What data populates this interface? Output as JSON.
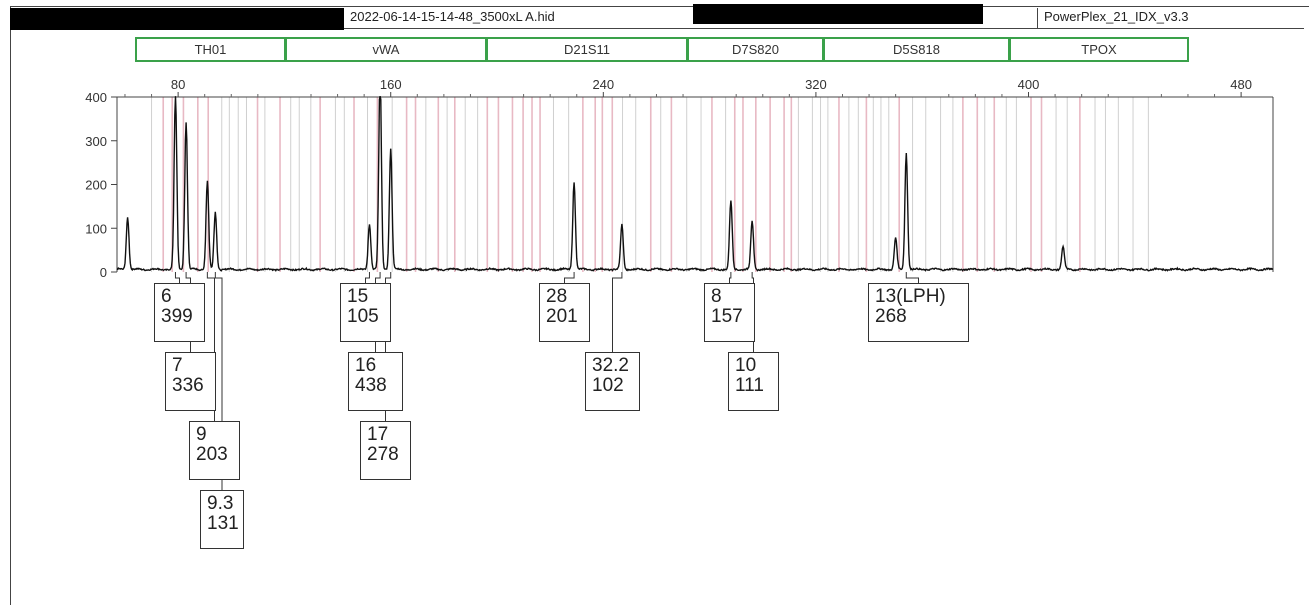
{
  "header": {
    "filename": "2022-06-14-15-14-48_3500xL A.hid",
    "panel": "PowerPlex_21_IDX_v3.3"
  },
  "loci": [
    {
      "name": "TH01",
      "range": [
        69,
        110
      ]
    },
    {
      "name": "vWA",
      "range": [
        110,
        184
      ]
    },
    {
      "name": "D21S11",
      "range": [
        184,
        258
      ]
    },
    {
      "name": "D7S820",
      "range": [
        258,
        308
      ]
    },
    {
      "name": "D5S818",
      "range": [
        308,
        379
      ]
    },
    {
      "name": "TPOX",
      "range": [
        379,
        444
      ]
    }
  ],
  "colors": {
    "bin": "#d98a9c",
    "ladder_line": "#aaaaaa",
    "trace": "#111111",
    "locus_border": "#3aa14a"
  },
  "chart_data": {
    "type": "line",
    "title": "",
    "xlabel": "",
    "ylabel": "",
    "xlim": [
      57,
      492
    ],
    "ylim": [
      0,
      400
    ],
    "x_ticks": [
      80,
      160,
      240,
      320,
      400,
      480
    ],
    "y_ticks": [
      0,
      100,
      200,
      300,
      400
    ],
    "grid": false,
    "peaks": [
      {
        "x": 61,
        "height": 120
      },
      {
        "x": 79,
        "height": 399
      },
      {
        "x": 83,
        "height": 336
      },
      {
        "x": 91,
        "height": 203
      },
      {
        "x": 94,
        "height": 131
      },
      {
        "x": 152,
        "height": 105
      },
      {
        "x": 156,
        "height": 438
      },
      {
        "x": 160,
        "height": 278
      },
      {
        "x": 229,
        "height": 201
      },
      {
        "x": 247,
        "height": 102
      },
      {
        "x": 288,
        "height": 157
      },
      {
        "x": 296,
        "height": 111
      },
      {
        "x": 350,
        "height": 72
      },
      {
        "x": 354,
        "height": 268
      },
      {
        "x": 413,
        "height": 52
      }
    ],
    "allele_calls": [
      {
        "allele": "6",
        "height": "399",
        "x": 79
      },
      {
        "allele": "7",
        "height": "336",
        "x": 83
      },
      {
        "allele": "9",
        "height": "203",
        "x": 91
      },
      {
        "allele": "9.3",
        "height": "131",
        "x": 94
      },
      {
        "allele": "15",
        "height": "105",
        "x": 152
      },
      {
        "allele": "16",
        "height": "438",
        "x": 156
      },
      {
        "allele": "17",
        "height": "278",
        "x": 160
      },
      {
        "allele": "28",
        "height": "201",
        "x": 229
      },
      {
        "allele": "32.2",
        "height": "102",
        "x": 247
      },
      {
        "allele": "8",
        "height": "157",
        "x": 288
      },
      {
        "allele": "10",
        "height": "111",
        "x": 296
      },
      {
        "allele": "13(LPH)",
        "height": "268",
        "x": 354
      }
    ]
  }
}
